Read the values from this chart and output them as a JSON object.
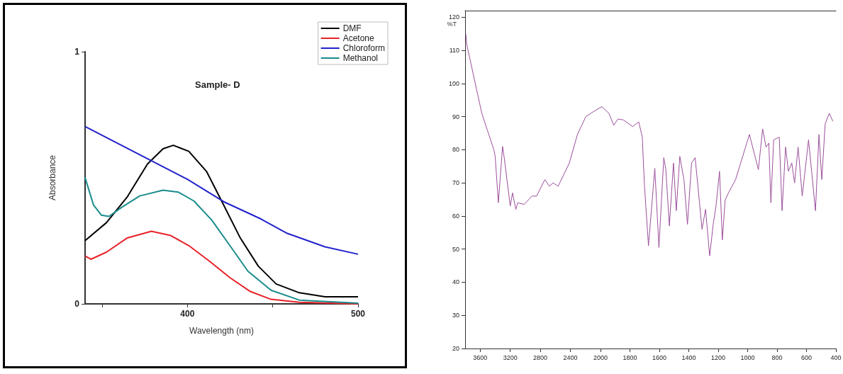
{
  "chart_data": [
    {
      "type": "line",
      "title": "Sample- D",
      "xlabel": "Wavelength (nm)",
      "ylabel": "Absorbance",
      "xlim": [
        340,
        500
      ],
      "ylim": [
        0,
        1
      ],
      "xticks": [
        {
          "value": 350,
          "label": null
        },
        400,
        {
          "value": 450,
          "label": null
        },
        500
      ],
      "yticks": [
        0,
        1
      ],
      "legend": "top right",
      "marker": "none",
      "series": [
        {
          "name": "DMF",
          "color": "#000000",
          "x": [
            340,
            352.5,
            364.6,
            376.6,
            385.7,
            391.7,
            400.8,
            411.3,
            420.4,
            431,
            441.5,
            452,
            465.6,
            480.7,
            500
          ],
          "values": [
            0.251,
            0.322,
            0.423,
            0.555,
            0.615,
            0.629,
            0.605,
            0.524,
            0.403,
            0.261,
            0.15,
            0.079,
            0.044,
            0.028,
            0.028
          ]
        },
        {
          "name": "Acetone",
          "color": "#e8222a",
          "x": [
            340,
            343.4,
            352.5,
            364.6,
            378.9,
            390.2,
            400.8,
            412.8,
            424.9,
            436.9,
            449,
            465.6,
            500
          ],
          "values": [
            0.19,
            0.177,
            0.205,
            0.261,
            0.288,
            0.271,
            0.231,
            0.17,
            0.104,
            0.049,
            0.018,
            0.006,
            0
          ]
        },
        {
          "name": "Chloroform",
          "color": "#2222cc",
          "x": [
            340,
            400,
            421.9,
            443,
            458,
            480.7,
            500
          ],
          "values": [
            0.703,
            0.494,
            0.403,
            0.337,
            0.281,
            0.226,
            0.197
          ]
        },
        {
          "name": "Methanol",
          "color": "#1a8c8c",
          "x": [
            340,
            344.9,
            349.5,
            354,
            361.5,
            372,
            385.7,
            394.7,
            403.8,
            414.3,
            424.9,
            435.4,
            449,
            465.6,
            500
          ],
          "values": [
            0.501,
            0.393,
            0.352,
            0.347,
            0.383,
            0.428,
            0.451,
            0.443,
            0.408,
            0.332,
            0.231,
            0.13,
            0.054,
            0.015,
            0.003
          ]
        }
      ]
    },
    {
      "type": "line",
      "ylabel": "%T",
      "xlim": [
        3800,
        2000
      ],
      "ylim": [
        20,
        122
      ],
      "xticks": [
        3600,
        3200,
        2800,
        2400,
        2000
      ],
      "yticks": [
        20,
        30,
        40,
        50,
        60,
        70,
        80,
        90,
        100,
        110,
        120
      ],
      "marker": "none",
      "series": [
        {
          "color": "#9b4f9b",
          "x": [
            3790,
            3780,
            3578,
            3418,
            3400,
            3358,
            3302,
            3280,
            3200,
            3170,
            3126,
            3100,
            3014,
            2912,
            2850,
            2740,
            2680,
            2630,
            2563,
            2414,
            2307,
            2195,
            2102,
            2000
          ],
          "values": [
            115,
            112,
            91,
            80,
            78,
            64,
            81,
            77.6,
            63,
            67,
            62,
            64,
            63.5,
            66,
            66,
            71,
            69,
            70,
            69,
            76,
            84.6,
            90,
            91.4,
            92.8
          ]
        }
      ]
    },
    {
      "type": "line",
      "xlim": [
        2000,
        400
      ],
      "ylim": [
        20,
        122
      ],
      "tick_labels": "x",
      "xticks": [
        1800,
        1600,
        1400,
        1200,
        1000,
        800,
        600,
        400
      ],
      "yticks": [
        20,
        30,
        40,
        50,
        60,
        70,
        80,
        90,
        100,
        110,
        120
      ],
      "marker": "none",
      "series": [
        {
          "color": "#9b4f9b",
          "x": [
            2000,
            1991,
            1943,
            1910,
            1881,
            1844,
            1782,
            1740,
            1716,
            1702,
            1674,
            1631,
            1603,
            1570,
            1556,
            1532,
            1504,
            1485,
            1461,
            1433,
            1409,
            1381,
            1357,
            1338,
            1310,
            1286,
            1258,
            1234,
            1215,
            1191,
            1172,
            1153,
            1130,
            1082,
            988,
            950,
            927,
            898,
            875,
            856,
            842,
            823,
            785,
            766,
            742,
            723,
            700,
            681,
            657,
            629,
            586,
            539,
            515,
            496,
            473,
            445,
            421
          ],
          "values": [
            92.8,
            93,
            91,
            87.4,
            89.3,
            89,
            87,
            88.4,
            83.8,
            69.7,
            51,
            74.4,
            50.5,
            77.6,
            74,
            57,
            76,
            61.6,
            78,
            71,
            57.5,
            76,
            77.6,
            69,
            56,
            62,
            48,
            57.5,
            63,
            73.5,
            52.8,
            64.8,
            67,
            71,
            84.6,
            78,
            74,
            86.3,
            80.8,
            82,
            64,
            83,
            83.8,
            61.6,
            80.8,
            73.5,
            76,
            70,
            80.8,
            66,
            83,
            61.6,
            84.6,
            71,
            87.8,
            91,
            88.6
          ]
        }
      ]
    }
  ]
}
